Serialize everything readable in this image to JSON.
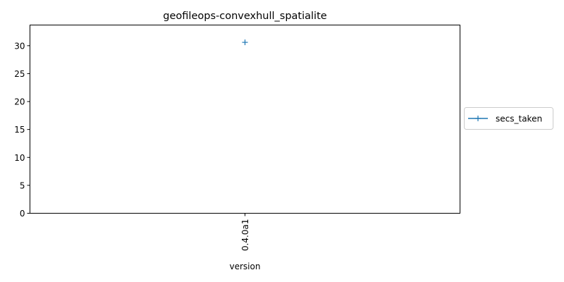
{
  "chart_data": {
    "type": "line",
    "title": "geofileops-convexhull_spatialite",
    "xlabel": "version",
    "ylabel": "",
    "categories": [
      "0.4.0a1"
    ],
    "series": [
      {
        "name": "secs_taken",
        "values": [
          30.6
        ],
        "color": "#1f77b4",
        "marker": "plus"
      }
    ],
    "ylim": [
      0,
      33.7
    ],
    "yticks": [
      0,
      5,
      10,
      15,
      20,
      25,
      30
    ],
    "grid": false,
    "legend": "outside-right"
  }
}
